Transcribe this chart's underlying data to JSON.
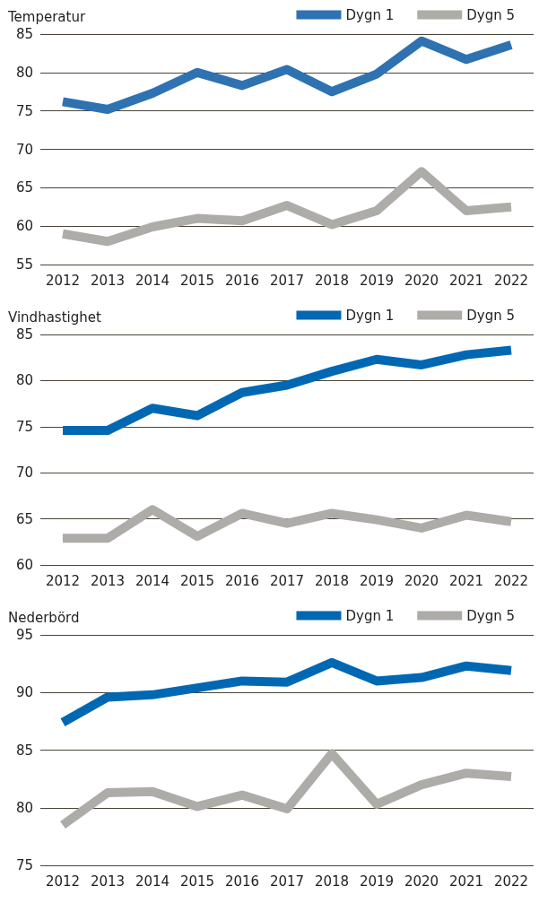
{
  "chart_data": [
    {
      "type": "line",
      "title": "Temperatur",
      "categories": [
        "2012",
        "2013",
        "2014",
        "2015",
        "2016",
        "2017",
        "2018",
        "2019",
        "2020",
        "2021",
        "2022"
      ],
      "series": [
        {
          "name": "Dygn 1",
          "color": "#2e72b2",
          "values": [
            76.2,
            75.2,
            77.3,
            80,
            78.3,
            80.4,
            77.5,
            79.8,
            84.1,
            81.7,
            83.6
          ]
        },
        {
          "name": "Dygn 5",
          "color": "#adaca8",
          "values": [
            59.0,
            58.0,
            59.9,
            61.0,
            60.7,
            62.7,
            60.2,
            62.0,
            67.1,
            62.0,
            62.5
          ]
        }
      ],
      "ylim": [
        55,
        85
      ],
      "yticks": [
        55,
        60,
        65,
        70,
        75,
        80,
        85
      ],
      "grid": "y",
      "legend": "top right",
      "marker": "none",
      "line_style": "solid"
    },
    {
      "type": "line",
      "title": "Vindhastighet",
      "categories": [
        "2012",
        "2013",
        "2014",
        "2015",
        "2016",
        "2017",
        "2018",
        "2019",
        "2020",
        "2021",
        "2022"
      ],
      "series": [
        {
          "name": "Dygn 1",
          "color": "#0068b3",
          "values": [
            74.6,
            74.6,
            77.0,
            76.2,
            78.7,
            79.5,
            81.0,
            82.3,
            81.7,
            82.8,
            83.3
          ]
        },
        {
          "name": "Dygn 5",
          "color": "#adaca8",
          "values": [
            62.9,
            62.9,
            66.0,
            63.1,
            65.6,
            64.5,
            65.6,
            64.9,
            64.0,
            65.4,
            64.7
          ]
        }
      ],
      "ylim": [
        60,
        85
      ],
      "yticks": [
        60,
        65,
        70,
        75,
        80,
        85
      ],
      "grid": "y",
      "legend": "top right",
      "marker": "none",
      "line_style": "solid"
    },
    {
      "type": "line",
      "title": "Nederbörd",
      "categories": [
        "2012",
        "2013",
        "2014",
        "2015",
        "2016",
        "2017",
        "2018",
        "2019",
        "2020",
        "2021",
        "2022"
      ],
      "series": [
        {
          "name": "Dygn 1",
          "color": "#0068b3",
          "values": [
            87.4,
            89.6,
            89.8,
            90.4,
            91.0,
            90.9,
            92.6,
            91.0,
            91.3,
            92.3,
            91.9
          ]
        },
        {
          "name": "Dygn 5",
          "color": "#adaca8",
          "values": [
            78.5,
            81.3,
            81.4,
            80.1,
            81.1,
            79.9,
            84.7,
            80.3,
            82.0,
            83.0,
            82.7
          ]
        }
      ],
      "ylim": [
        75,
        95
      ],
      "yticks": [
        75,
        80,
        85,
        90,
        95
      ],
      "grid": "y",
      "legend": "top right",
      "marker": "none",
      "line_style": "solid"
    }
  ]
}
